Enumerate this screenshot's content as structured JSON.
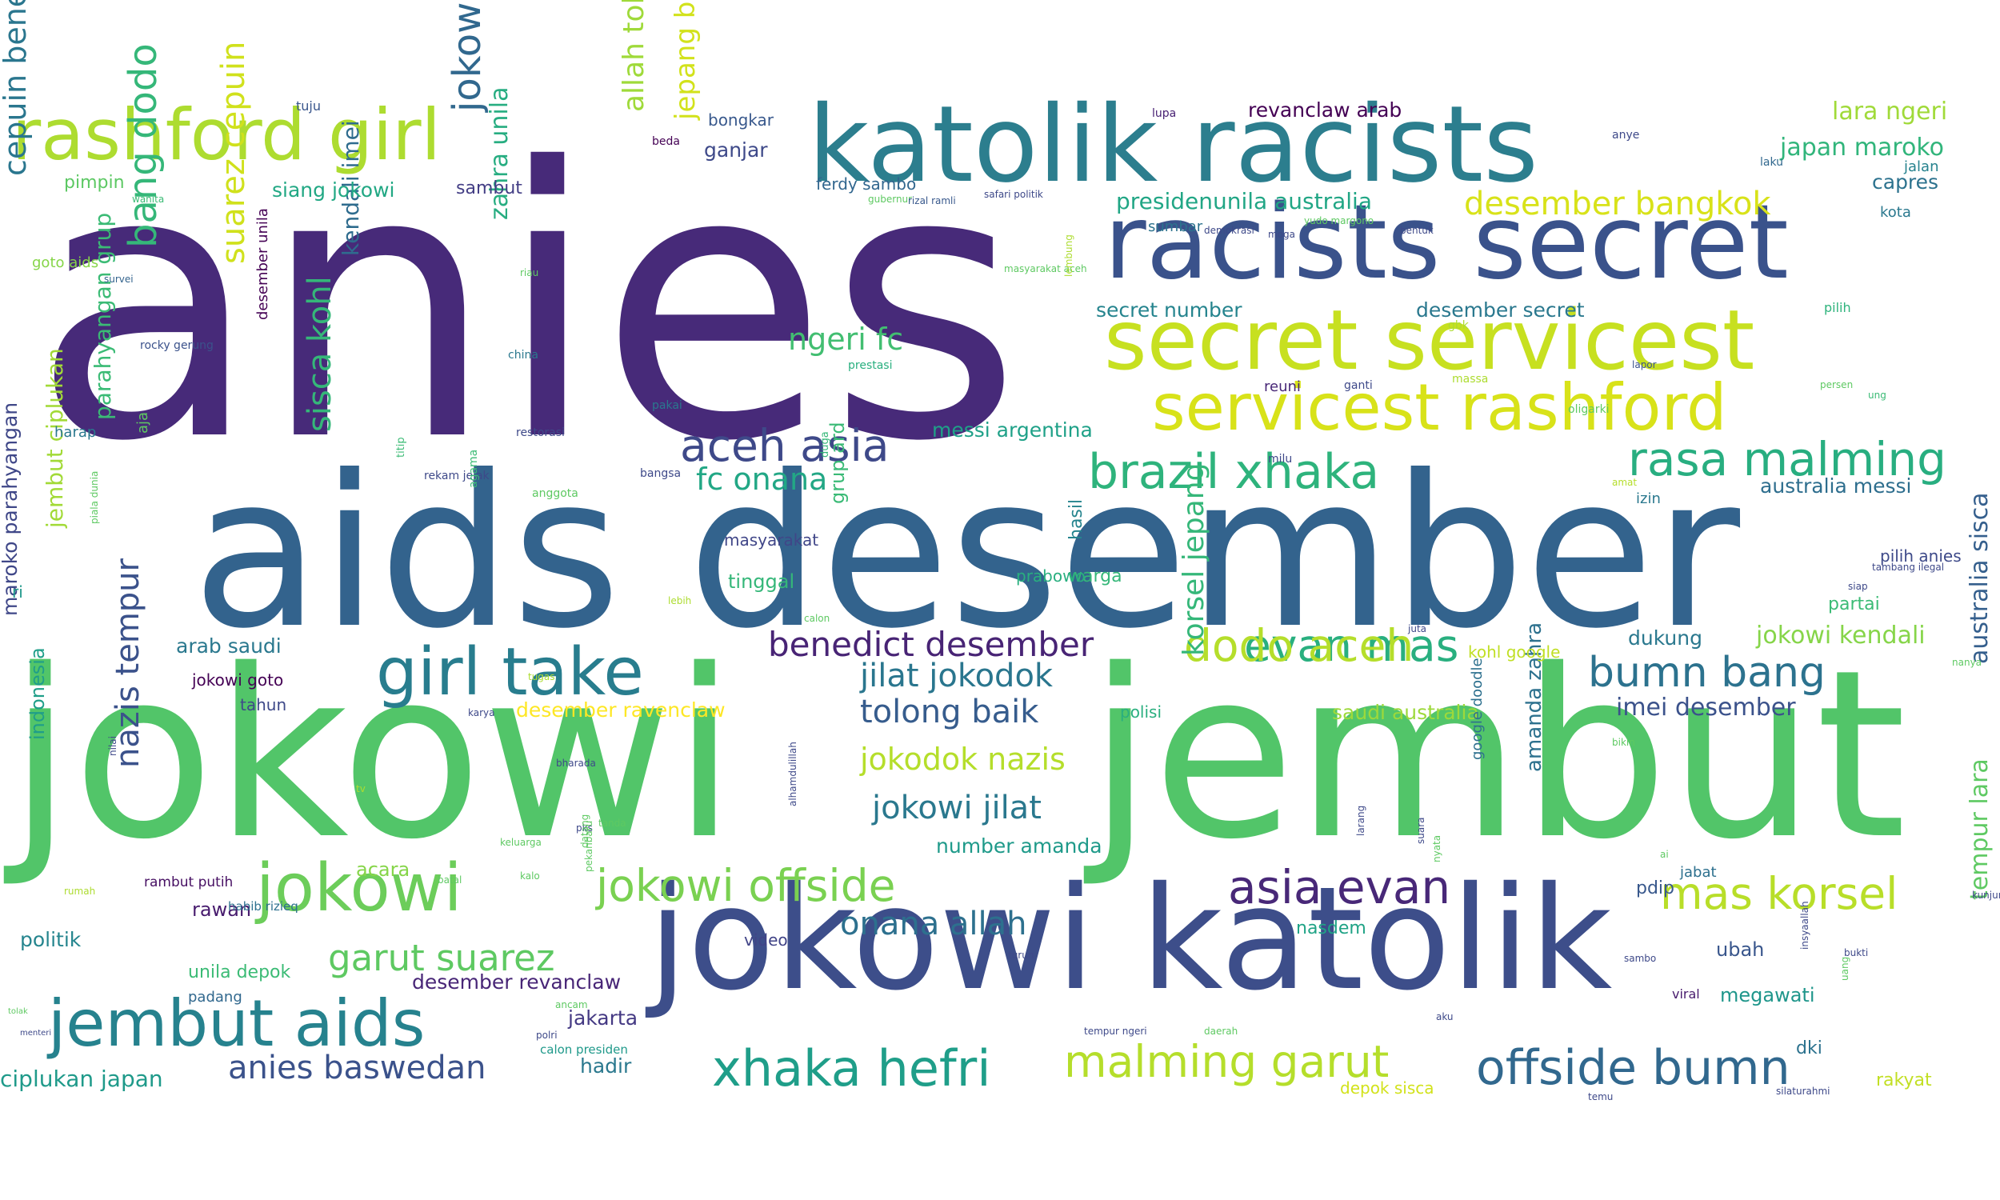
{
  "cloud": {
    "words": [
      {
        "text": "anies",
        "color": "#472a79"
      },
      {
        "text": "aids desember",
        "color": "#33638d"
      },
      {
        "text": "jokowi",
        "color": "#52c569"
      },
      {
        "text": "jembut",
        "color": "#52c569"
      },
      {
        "text": "jokowi katolik",
        "color": "#3d4e8a"
      },
      {
        "text": "katolik racists",
        "color": "#2c7e8e"
      },
      {
        "text": "racists secret",
        "color": "#3a528b"
      },
      {
        "text": "secret servicest",
        "color": "#c7e020"
      },
      {
        "text": "servicest rashford",
        "color": "#d8e219"
      },
      {
        "text": "rashford girl",
        "color": "#addc30"
      },
      {
        "text": "girl take",
        "color": "#287d8e"
      },
      {
        "text": "jokowi",
        "color": "#6ccd5a"
      },
      {
        "text": "jembut aids",
        "color": "#26828e"
      },
      {
        "text": "xhaka hefri",
        "color": "#1f9e89"
      },
      {
        "text": "malming garut",
        "color": "#b5de2b"
      },
      {
        "text": "offside bumn",
        "color": "#31688e"
      },
      {
        "text": "brazil xhaka",
        "color": "#2eb37c"
      },
      {
        "text": "rasa malming",
        "color": "#28ae80"
      },
      {
        "text": "aceh asia",
        "color": "#3e4989"
      },
      {
        "text": "asia evan",
        "color": "#482878"
      },
      {
        "text": "mas korsel",
        "color": "#b8de29"
      },
      {
        "text": "evan mas",
        "color": "#29af7f"
      },
      {
        "text": "dodo aceh",
        "color": "#b5de2b"
      },
      {
        "text": "bumn bang",
        "color": "#2c728e"
      },
      {
        "text": "benedict desember",
        "color": "#482475"
      },
      {
        "text": "jokowi offside",
        "color": "#7ad151"
      },
      {
        "text": "garut suarez",
        "color": "#5ec962"
      },
      {
        "text": "anies baswedan",
        "color": "#3b528b"
      },
      {
        "text": "onana allah",
        "color": "#2d708e"
      },
      {
        "text": "jokowi jilat",
        "color": "#2a788e"
      },
      {
        "text": "tolong baik",
        "color": "#365c8d"
      },
      {
        "text": "jilat jokodok",
        "color": "#2a768e"
      },
      {
        "text": "jokodok nazis",
        "color": "#b5de2b"
      },
      {
        "text": "fc onana",
        "color": "#22a785"
      },
      {
        "text": "ngeri fc",
        "color": "#42be71"
      },
      {
        "text": "desember bangkok",
        "color": "#d8e219"
      },
      {
        "text": "presidenunila australia",
        "color": "#21a685"
      },
      {
        "text": "revanclaw arab",
        "color": "#440154"
      },
      {
        "text": "lara ngeri",
        "color": "#a0da39"
      },
      {
        "text": "japan maroko",
        "color": "#31b57b"
      },
      {
        "text": "capres",
        "color": "#2c728e"
      },
      {
        "text": "suarez cepuin",
        "color": "#d0e11c"
      },
      {
        "text": "jokowi rasa",
        "color": "#31688e"
      },
      {
        "text": "allah tolong",
        "color": "#9fda3a"
      },
      {
        "text": "jepang brazil",
        "color": "#d2e21b"
      },
      {
        "text": "zahra unila",
        "color": "#27ad81"
      },
      {
        "text": "kendali imei",
        "color": "#2f6c8e"
      },
      {
        "text": "sisca kohl",
        "color": "#35b779"
      },
      {
        "text": "bang dodo",
        "color": "#35b779"
      },
      {
        "text": "cepuin benedict",
        "color": "#2a768e"
      },
      {
        "text": "nazis tempur",
        "color": "#3b528b"
      },
      {
        "text": "korsel jepang",
        "color": "#35b779"
      },
      {
        "text": "australia sisca",
        "color": "#355f8d"
      },
      {
        "text": "tempur lara",
        "color": "#5ec962"
      },
      {
        "text": "amanda zahra",
        "color": "#2d718e"
      },
      {
        "text": "jokowi kendali",
        "color": "#86d549"
      },
      {
        "text": "imei desember",
        "color": "#3b528b"
      },
      {
        "text": "number amanda",
        "color": "#1f9a8a"
      },
      {
        "text": "messi argentina",
        "color": "#1fa188"
      },
      {
        "text": "australia messi",
        "color": "#2e6e8e"
      },
      {
        "text": "secret number",
        "color": "#25848e"
      },
      {
        "text": "desember secret",
        "color": "#2a788e"
      },
      {
        "text": "desember ravenclaw",
        "color": "#fde725"
      },
      {
        "text": "desember revanclaw",
        "color": "#482677"
      },
      {
        "text": "siang jokowi",
        "color": "#22a884"
      },
      {
        "text": "pilih anies",
        "color": "#3e4a89"
      },
      {
        "text": "arab saudi",
        "color": "#2a788e"
      },
      {
        "text": "saudi australia",
        "color": "#9dd93b"
      },
      {
        "text": "jembut ciplukan",
        "color": "#a2da37"
      },
      {
        "text": "parahyangan grup",
        "color": "#3bbb75"
      },
      {
        "text": "maroko parahyangan",
        "color": "#3f4788"
      },
      {
        "text": "ciplukan japan",
        "color": "#1f9a8a"
      },
      {
        "text": "grup ard",
        "color": "#3aba76"
      },
      {
        "text": "ferdy sambo",
        "color": "#31668e"
      },
      {
        "text": "ganjar",
        "color": "#3e4989"
      },
      {
        "text": "bongkar",
        "color": "#38588c"
      },
      {
        "text": "sambut",
        "color": "#433e85"
      },
      {
        "text": "pimpin",
        "color": "#5cc863"
      },
      {
        "text": "goto aids",
        "color": "#86d549"
      },
      {
        "text": "jokowi goto",
        "color": "#440154"
      },
      {
        "text": "kohl google",
        "color": "#c0df25"
      },
      {
        "text": "google doodle",
        "color": "#2d708e"
      },
      {
        "text": "masyarakat",
        "color": "#404688"
      },
      {
        "text": "tinggal",
        "color": "#35b779"
      },
      {
        "text": "warga",
        "color": "#35b779"
      },
      {
        "text": "hasil",
        "color": "#25848e"
      },
      {
        "text": "prabowo",
        "color": "#29af7f"
      },
      {
        "text": "partai",
        "color": "#3bbb75"
      },
      {
        "text": "dukung",
        "color": "#2a788e"
      },
      {
        "text": "ubah",
        "color": "#39568c"
      },
      {
        "text": "megawati",
        "color": "#1f968b"
      },
      {
        "text": "dki",
        "color": "#2c728e"
      },
      {
        "text": "rakyat",
        "color": "#c2df23"
      },
      {
        "text": "pdip",
        "color": "#38588c"
      },
      {
        "text": "nasdem",
        "color": "#20a386"
      },
      {
        "text": "jakarta",
        "color": "#443983"
      },
      {
        "text": "hadir",
        "color": "#2a788e"
      },
      {
        "text": "politik",
        "color": "#25858e"
      },
      {
        "text": "indonesia",
        "color": "#1f9e89"
      },
      {
        "text": "rawan",
        "color": "#481c6e"
      },
      {
        "text": "acara",
        "color": "#86d549"
      },
      {
        "text": "polisi",
        "color": "#29af7f"
      },
      {
        "text": "tahun",
        "color": "#3e4989"
      },
      {
        "text": "video",
        "color": "#414487"
      },
      {
        "text": "unila depok",
        "color": "#3bbb75"
      },
      {
        "text": "depok sisca",
        "color": "#d2e21b"
      },
      {
        "text": "padang",
        "color": "#31688e"
      },
      {
        "text": "calon presiden",
        "color": "#1f998a"
      },
      {
        "text": "habib rizieq",
        "color": "#2d708e"
      },
      {
        "text": "rambut putih",
        "color": "#471063"
      },
      {
        "text": "ri",
        "color": "#1f988b"
      },
      {
        "text": "harap",
        "color": "#2a788e"
      },
      {
        "text": "aja",
        "color": "#5ec962"
      },
      {
        "text": "desember unila",
        "color": "#440154"
      },
      {
        "text": "reuni",
        "color": "#482777"
      },
      {
        "text": "jalan",
        "color": "#26828e"
      },
      {
        "text": "kota",
        "color": "#2a788e"
      },
      {
        "text": "pilih",
        "color": "#2eb37c"
      },
      {
        "text": "izin",
        "color": "#2a788e"
      },
      {
        "text": "jabat",
        "color": "#2d708e"
      },
      {
        "text": "viral",
        "color": "#481b6d"
      },
      {
        "text": "tuju",
        "color": "#39568c"
      },
      {
        "text": "lupa",
        "color": "#482173"
      },
      {
        "text": "beda",
        "color": "#440154"
      },
      {
        "text": "anye",
        "color": "#3e4989"
      },
      {
        "text": "laku",
        "color": "#31688e"
      },
      {
        "text": "sumbar",
        "color": "#2c728e"
      },
      {
        "text": "wanita",
        "color": "#3bbb75"
      },
      {
        "text": "survei",
        "color": "#33638d"
      },
      {
        "text": "rocky gerung",
        "color": "#3b528b"
      },
      {
        "text": "china",
        "color": "#2a788e"
      },
      {
        "text": "prestasi",
        "color": "#29af7f"
      },
      {
        "text": "pakai",
        "color": "#2a788e"
      },
      {
        "text": "restorasi",
        "color": "#3e4989"
      },
      {
        "text": "titip",
        "color": "#3bbb75"
      },
      {
        "text": "duga",
        "color": "#35b779"
      },
      {
        "text": "rekam jejak",
        "color": "#3e4989"
      },
      {
        "text": "anggota",
        "color": "#5ec962"
      },
      {
        "text": "bangsa",
        "color": "#3e4989"
      },
      {
        "text": "agama",
        "color": "#3bbb75"
      },
      {
        "text": "milu",
        "color": "#3e4989"
      },
      {
        "text": "massa",
        "color": "#addc30"
      },
      {
        "text": "ganti",
        "color": "#3e4989"
      },
      {
        "text": "gbk",
        "color": "#addc30"
      },
      {
        "text": "oligarki",
        "color": "#5ec962"
      },
      {
        "text": "amat",
        "color": "#b5de2b"
      },
      {
        "text": "persen",
        "color": "#5ec962"
      },
      {
        "text": "ung",
        "color": "#3bbb75"
      },
      {
        "text": "lapor",
        "color": "#3b528b"
      },
      {
        "text": "gubernur",
        "color": "#5ec962"
      },
      {
        "text": "rizal ramli",
        "color": "#38588c"
      },
      {
        "text": "safari politik",
        "color": "#3e4989"
      },
      {
        "text": "masyarakat aceh",
        "color": "#5ec962"
      },
      {
        "text": "demokrasi",
        "color": "#3e4989"
      },
      {
        "text": "moga",
        "color": "#3e4989"
      },
      {
        "text": "yudo margono",
        "color": "#5ec962"
      },
      {
        "text": "bentuk",
        "color": "#3e4989"
      },
      {
        "text": "lembung",
        "color": "#addc30"
      },
      {
        "text": "riau",
        "color": "#5ec962"
      },
      {
        "text": "tambang ilegal",
        "color": "#3e4989"
      },
      {
        "text": "siap",
        "color": "#3e4989"
      },
      {
        "text": "nanya",
        "color": "#5ec962"
      },
      {
        "text": "bikin",
        "color": "#5ec962"
      },
      {
        "text": "ai",
        "color": "#5ec962"
      },
      {
        "text": "kunjung",
        "color": "#3e4989"
      },
      {
        "text": "bukti",
        "color": "#3e4989"
      },
      {
        "text": "uang",
        "color": "#5ec962"
      },
      {
        "text": "sambo",
        "color": "#3e4989"
      },
      {
        "text": "insyaallah",
        "color": "#3e4989"
      },
      {
        "text": "silaturahmi",
        "color": "#3e4989"
      },
      {
        "text": "temu",
        "color": "#3e4989"
      },
      {
        "text": "aku",
        "color": "#3e4989"
      },
      {
        "text": "daerah",
        "color": "#5ec962"
      },
      {
        "text": "tempur ngeri",
        "color": "#3e4989"
      },
      {
        "text": "turun",
        "color": "#3e4989"
      },
      {
        "text": "suara",
        "color": "#3e4989"
      },
      {
        "text": "nyata",
        "color": "#5ec962"
      },
      {
        "text": "juta",
        "color": "#3e4989"
      },
      {
        "text": "larang",
        "color": "#3e4989"
      },
      {
        "text": "pks",
        "color": "#3e4989"
      },
      {
        "text": "tanda",
        "color": "#5ec962"
      },
      {
        "text": "datang",
        "color": "#5ec962"
      },
      {
        "text": "pekanbaru",
        "color": "#5ec962"
      },
      {
        "text": "kalo",
        "color": "#5ec962"
      },
      {
        "text": "karya",
        "color": "#3e4989"
      },
      {
        "text": "calon",
        "color": "#5ec962"
      },
      {
        "text": "lebih",
        "color": "#addc30"
      },
      {
        "text": "tugas",
        "color": "#addc30"
      },
      {
        "text": "piala dunia",
        "color": "#5ec962"
      },
      {
        "text": "nilai",
        "color": "#3e4989"
      },
      {
        "text": "bharada",
        "color": "#3e4989"
      },
      {
        "text": "tv",
        "color": "#addc30"
      },
      {
        "text": "keluarga",
        "color": "#5ec962"
      },
      {
        "text": "rumah",
        "color": "#addc30"
      },
      {
        "text": "batal",
        "color": "#5ec962"
      },
      {
        "text": "alhamdulillah",
        "color": "#3e4989"
      },
      {
        "text": "ancam",
        "color": "#5ec962"
      },
      {
        "text": "polri",
        "color": "#3e4989"
      },
      {
        "text": "tolak",
        "color": "#5ec962"
      },
      {
        "text": "menteri",
        "color": "#3e4989"
      }
    ]
  }
}
